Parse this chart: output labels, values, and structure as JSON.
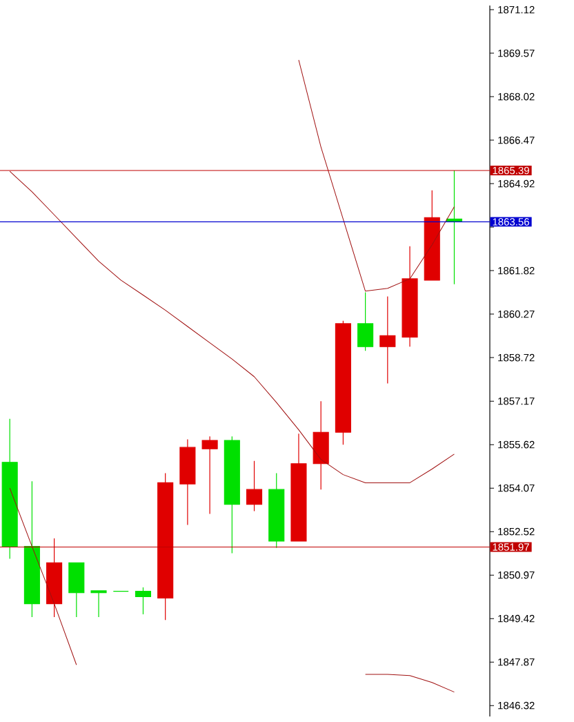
{
  "chart_data": {
    "type": "candlestick",
    "categories": [
      null,
      null,
      null,
      null,
      null,
      null,
      null,
      null,
      null,
      null,
      null,
      null,
      null,
      null,
      null,
      null,
      null,
      null,
      null,
      null,
      null
    ],
    "ohlc": [
      [
        1854.99,
        1856.54,
        1851.55,
        1851.99
      ],
      [
        1851.99,
        1854.31,
        1849.47,
        1849.95
      ],
      [
        1849.95,
        1852.28,
        1849.47,
        1851.41
      ],
      [
        1851.41,
        1851.41,
        1849.47,
        1850.34
      ],
      [
        1850.41,
        1850.41,
        1849.47,
        1850.34
      ],
      [
        1850.39,
        1850.39,
        1850.39,
        1850.39
      ],
      [
        1850.39,
        1850.53,
        1849.57,
        1850.2
      ],
      [
        1850.15,
        1854.6,
        1849.37,
        1854.26
      ],
      [
        1854.22,
        1855.81,
        1852.76,
        1855.52
      ],
      [
        1855.47,
        1855.91,
        1853.15,
        1855.77
      ],
      [
        1855.77,
        1855.91,
        1851.75,
        1853.49
      ],
      [
        1853.49,
        1855.04,
        1853.25,
        1854.02
      ],
      [
        1854.02,
        1854.6,
        1851.94,
        1852.18
      ],
      [
        1852.18,
        1856.01,
        1852.18,
        1854.94
      ],
      [
        1854.94,
        1857.17,
        1854.02,
        1856.06
      ],
      [
        1856.06,
        1860.03,
        1855.62,
        1859.93
      ],
      [
        1859.93,
        1861.05,
        1858.96,
        1859.11
      ],
      [
        1859.11,
        1860.9,
        1857.8,
        1859.5
      ],
      [
        1859.45,
        1862.69,
        1859.11,
        1861.53
      ],
      [
        1861.48,
        1864.68,
        1861.48,
        1863.71
      ],
      [
        1863.66,
        1865.39,
        1861.34,
        1863.56
      ]
    ],
    "colors": [
      "#00e000",
      "#00e000",
      "#e00000",
      "#00e000",
      "#00e000",
      "#00e000",
      "#00e000",
      "#e00000",
      "#e00000",
      "#e00000",
      "#00e000",
      "#e00000",
      "#00e000",
      "#e00000",
      "#e00000",
      "#e00000",
      "#00e000",
      "#e00000",
      "#e00000",
      "#e00000",
      "#00e000"
    ],
    "series": [
      {
        "type": "line",
        "color": "#a01010",
        "values": [
          null,
          null,
          null,
          null,
          null,
          null,
          null,
          null,
          null,
          null,
          null,
          null,
          null,
          1869.33,
          1866.23,
          1863.66,
          1861.09,
          1861.19,
          1861.53,
          1862.74,
          1864.1
        ]
      },
      {
        "type": "line",
        "color": "#a01010",
        "values": [
          1865.36,
          1864.63,
          1863.81,
          1862.98,
          1862.16,
          1861.48,
          1860.95,
          1860.41,
          1859.83,
          1859.25,
          1858.67,
          1858.04,
          1857.12,
          1856.15,
          1855.09,
          1854.55,
          1854.26,
          1854.26,
          1854.26,
          1854.75,
          1855.28
        ]
      },
      {
        "type": "line",
        "color": "#a01010",
        "values": [
          1854.07,
          1851.99,
          1849.95,
          1847.77,
          null,
          null,
          null,
          null,
          null,
          null,
          null,
          null,
          null,
          null,
          null,
          null,
          1847.43,
          1847.43,
          1847.39,
          1847.14,
          1846.8
        ]
      }
    ],
    "ylim": [
      1845.93,
      1871.27
    ],
    "yticks": [
      1846.32,
      1847.87,
      1849.42,
      1850.97,
      1852.52,
      1854.07,
      1855.62,
      1857.17,
      1858.72,
      1860.27,
      1861.82,
      {
        "value": 1863.37,
        "label": null
      },
      1864.92,
      1866.47,
      1868.02,
      1869.57,
      1871.12
    ],
    "tick_labels": "y",
    "ref_lines": [
      {
        "axis": "y",
        "value": 1865.39,
        "label": "1865.39",
        "color": "#c00000"
      },
      {
        "axis": "y",
        "value": 1863.56,
        "label": "1863.56",
        "color": "#0000d0"
      },
      {
        "axis": "y",
        "value": 1851.97,
        "label": "1851.97",
        "color": "#c00000"
      }
    ]
  }
}
